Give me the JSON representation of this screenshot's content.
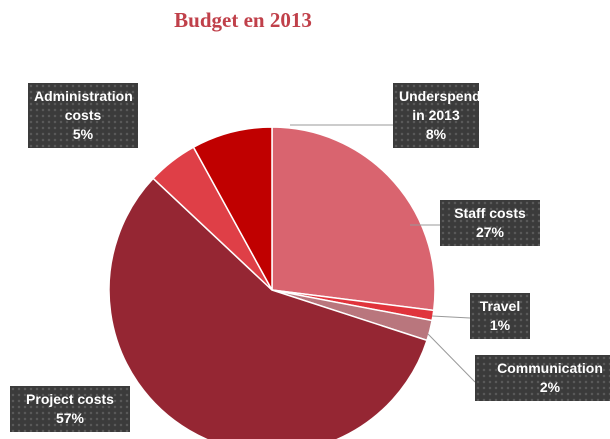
{
  "chart_data": {
    "type": "pie",
    "title": "Budget en 2013",
    "categories": [
      "Staff costs",
      "Travel",
      "Communication",
      "Project costs",
      "Administration costs",
      "Underspend in 2013"
    ],
    "values": [
      27,
      1,
      2,
      57,
      5,
      8
    ],
    "value_labels": [
      "27%",
      "1%",
      "2%",
      "57%",
      "5%",
      "8%"
    ],
    "colors": [
      "#d9646f",
      "#e0343c",
      "#b9767d",
      "#952633",
      "#df3f47",
      "#c00000"
    ]
  }
}
